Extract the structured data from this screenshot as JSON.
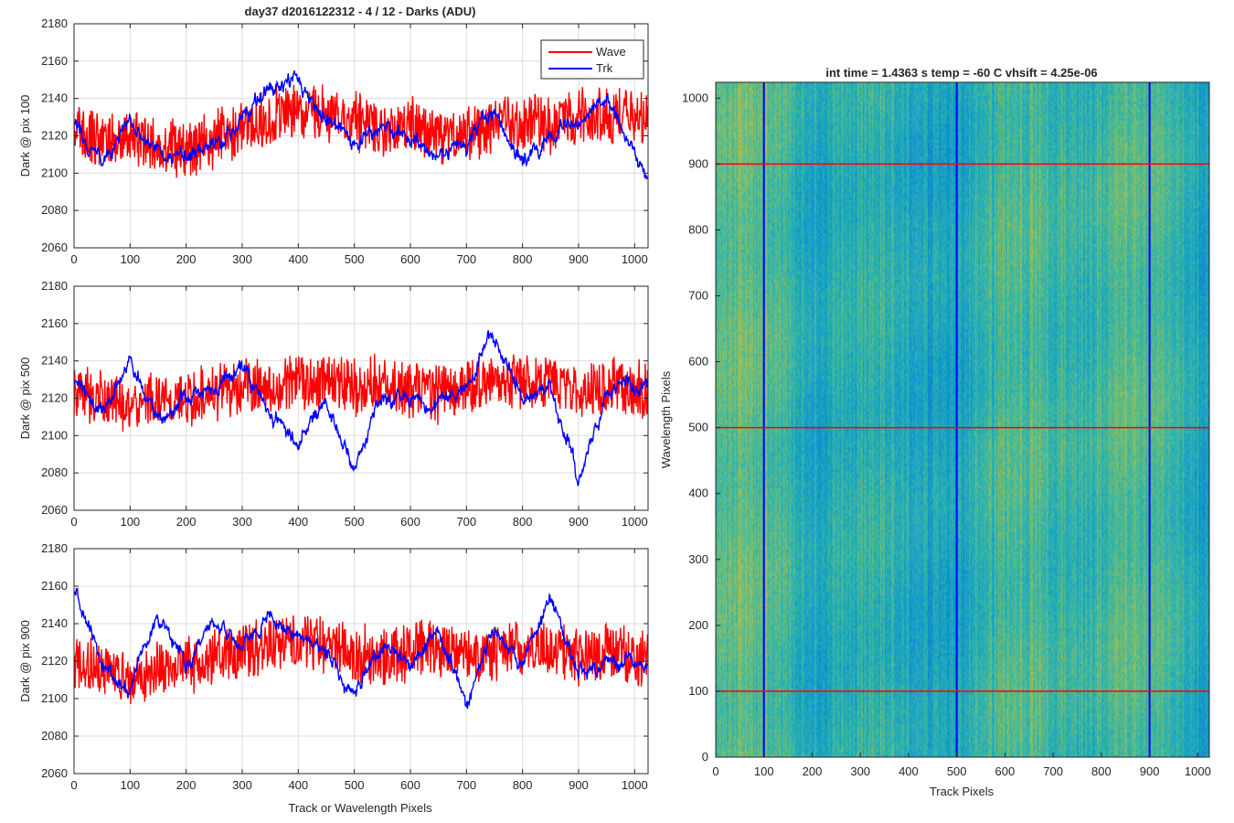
{
  "figure": {
    "title": "day37 d2016122312 - 4 / 12 - Darks (ADU)",
    "xlabel": "Track or Wavelength Pixels"
  },
  "image_panel": {
    "title": "int time = 1.4363 s    temp = -60 C    vhsift = 4.25e-06",
    "xlabel": "Track Pixels",
    "ylabel": "Wavelength Pixels",
    "xlim": [
      0,
      1024
    ],
    "ylim": [
      0,
      1024
    ],
    "xticks": [
      "0",
      "100",
      "200",
      "300",
      "400",
      "500",
      "600",
      "700",
      "800",
      "900",
      "1000"
    ],
    "yticks": [
      "0",
      "100",
      "200",
      "300",
      "400",
      "500",
      "600",
      "700",
      "800",
      "900",
      "1000"
    ],
    "marker_columns": [
      100,
      500,
      900
    ],
    "marker_rows": [
      100,
      500,
      900
    ],
    "column_marker_color": "#0000ff",
    "row_marker_color": "#ff0000",
    "colormap": "parula"
  },
  "legend": {
    "placement": "top-right",
    "items": [
      {
        "label": "Wave",
        "color": "#ff0000"
      },
      {
        "label": "Trk",
        "color": "#0000ff"
      }
    ]
  },
  "chart_data": [
    {
      "type": "line",
      "ylabel": "Dark @ pix 100",
      "xlim": [
        0,
        1024
      ],
      "ylim": [
        2060,
        2180
      ],
      "xticks": [
        "0",
        "100",
        "200",
        "300",
        "400",
        "500",
        "600",
        "700",
        "800",
        "900",
        "1000"
      ],
      "yticks": [
        "2060",
        "2080",
        "2100",
        "2120",
        "2140",
        "2160",
        "2180"
      ],
      "grid": true,
      "series": [
        {
          "name": "Wave",
          "color": "#ff0000",
          "x": [
            0,
            50,
            100,
            150,
            200,
            250,
            300,
            350,
            400,
            450,
            500,
            550,
            600,
            650,
            700,
            750,
            800,
            850,
            900,
            950,
            1024
          ],
          "y": [
            2122,
            2118,
            2120,
            2115,
            2112,
            2118,
            2125,
            2130,
            2135,
            2132,
            2128,
            2122,
            2125,
            2120,
            2122,
            2125,
            2127,
            2126,
            2130,
            2132,
            2130
          ]
        },
        {
          "name": "Trk",
          "color": "#0000ff",
          "x": [
            0,
            50,
            100,
            150,
            200,
            250,
            300,
            350,
            400,
            450,
            500,
            550,
            600,
            650,
            700,
            750,
            800,
            850,
            900,
            950,
            1024
          ],
          "y": [
            2125,
            2108,
            2130,
            2112,
            2108,
            2115,
            2128,
            2145,
            2148,
            2130,
            2112,
            2125,
            2120,
            2110,
            2115,
            2132,
            2105,
            2120,
            2128,
            2140,
            2100
          ]
        }
      ]
    },
    {
      "type": "line",
      "ylabel": "Dark @ pix 500",
      "xlim": [
        0,
        1024
      ],
      "ylim": [
        2060,
        2180
      ],
      "xticks": [
        "0",
        "100",
        "200",
        "300",
        "400",
        "500",
        "600",
        "700",
        "800",
        "900",
        "1000"
      ],
      "yticks": [
        "2060",
        "2080",
        "2100",
        "2120",
        "2140",
        "2160",
        "2180"
      ],
      "grid": true,
      "series": [
        {
          "name": "Wave",
          "color": "#ff0000",
          "x": [
            0,
            50,
            100,
            150,
            200,
            250,
            300,
            350,
            400,
            450,
            500,
            550,
            600,
            650,
            700,
            750,
            800,
            850,
            900,
            950,
            1024
          ],
          "y": [
            2122,
            2120,
            2118,
            2118,
            2120,
            2122,
            2128,
            2125,
            2130,
            2128,
            2126,
            2128,
            2125,
            2122,
            2125,
            2130,
            2128,
            2128,
            2124,
            2126,
            2125
          ]
        },
        {
          "name": "Trk",
          "color": "#0000ff",
          "x": [
            0,
            50,
            100,
            150,
            200,
            250,
            300,
            350,
            400,
            450,
            500,
            550,
            600,
            650,
            700,
            750,
            800,
            850,
            900,
            950,
            1024
          ],
          "y": [
            2130,
            2112,
            2140,
            2108,
            2120,
            2125,
            2135,
            2112,
            2095,
            2120,
            2080,
            2125,
            2120,
            2115,
            2125,
            2155,
            2120,
            2125,
            2080,
            2122,
            2130
          ]
        }
      ]
    },
    {
      "type": "line",
      "ylabel": "Dark @ pix 900",
      "xlim": [
        0,
        1024
      ],
      "ylim": [
        2060,
        2180
      ],
      "xticks": [
        "0",
        "100",
        "200",
        "300",
        "400",
        "500",
        "600",
        "700",
        "800",
        "900",
        "1000"
      ],
      "yticks": [
        "2060",
        "2080",
        "2100",
        "2120",
        "2140",
        "2160",
        "2180"
      ],
      "grid": true,
      "series": [
        {
          "name": "Wave",
          "color": "#ff0000",
          "x": [
            0,
            50,
            100,
            150,
            200,
            250,
            300,
            350,
            400,
            450,
            500,
            550,
            600,
            650,
            700,
            750,
            800,
            850,
            900,
            950,
            1024
          ],
          "y": [
            2118,
            2115,
            2112,
            2115,
            2118,
            2122,
            2125,
            2128,
            2130,
            2128,
            2125,
            2122,
            2125,
            2128,
            2122,
            2125,
            2128,
            2126,
            2122,
            2125,
            2120
          ]
        },
        {
          "name": "Trk",
          "color": "#0000ff",
          "x": [
            0,
            50,
            100,
            150,
            200,
            250,
            300,
            350,
            400,
            450,
            500,
            550,
            600,
            650,
            700,
            750,
            800,
            850,
            900,
            950,
            1024
          ],
          "y": [
            2158,
            2118,
            2102,
            2145,
            2118,
            2140,
            2128,
            2145,
            2132,
            2125,
            2102,
            2130,
            2118,
            2138,
            2095,
            2135,
            2118,
            2155,
            2115,
            2118,
            2118
          ]
        }
      ]
    }
  ]
}
